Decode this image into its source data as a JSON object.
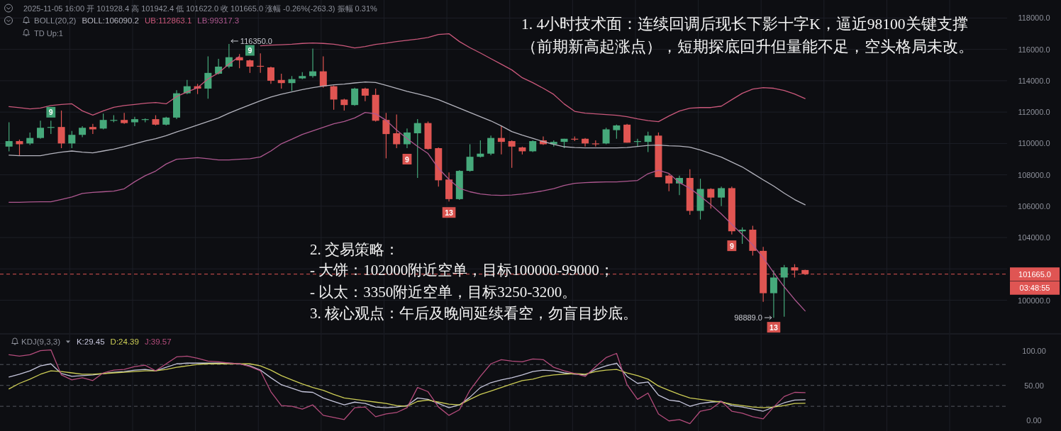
{
  "chart_data": [
    {
      "type": "candlestick",
      "categories": [
        null,
        null,
        null,
        null,
        null,
        null,
        null,
        null,
        null,
        null,
        null,
        null,
        null,
        null,
        null,
        null,
        null,
        null,
        null,
        null,
        null,
        null,
        null,
        null,
        null,
        null,
        null,
        null,
        null,
        null,
        null,
        null,
        null,
        null,
        null,
        null,
        null,
        null,
        null,
        null,
        null,
        null,
        null,
        null,
        null,
        null,
        null,
        null,
        null,
        null,
        null,
        null,
        null,
        null,
        null,
        null,
        null,
        null,
        null,
        null,
        null,
        null,
        null,
        null,
        null,
        null,
        null,
        null,
        null,
        null,
        null,
        null,
        null,
        null,
        null,
        null,
        null
      ],
      "ohlc": [
        [
          109800,
          111350,
          109500,
          110150
        ],
        [
          110150,
          110250,
          109250,
          109950
        ],
        [
          110000,
          110700,
          109900,
          110350
        ],
        [
          110350,
          111450,
          110300,
          111000
        ],
        [
          111000,
          111450,
          110600,
          111050
        ],
        [
          111050,
          112100,
          109700,
          110000
        ],
        [
          110000,
          110800,
          109700,
          110550
        ],
        [
          110550,
          111100,
          110400,
          111000
        ],
        [
          111050,
          111250,
          110600,
          110900
        ],
        [
          110950,
          111900,
          110900,
          111500
        ],
        [
          111450,
          111800,
          111350,
          111500
        ],
        [
          111500,
          111950,
          111250,
          111300
        ],
        [
          111350,
          111700,
          111100,
          111550
        ],
        [
          111500,
          111600,
          111350,
          111550
        ],
        [
          111550,
          111800,
          111150,
          111200
        ],
        [
          111200,
          111700,
          111150,
          111650
        ],
        [
          111650,
          113400,
          111550,
          113200
        ],
        [
          113200,
          114050,
          113150,
          113650
        ],
        [
          113650,
          113800,
          113150,
          113500
        ],
        [
          113500,
          115550,
          112850,
          114500
        ],
        [
          114450,
          115400,
          114400,
          114900
        ],
        [
          114900,
          116350,
          114800,
          115500
        ],
        [
          115500,
          115700,
          114800,
          115300
        ],
        [
          115300,
          115350,
          114500,
          114900
        ],
        [
          114950,
          115750,
          114500,
          114900
        ],
        [
          114850,
          114900,
          113800,
          114000
        ],
        [
          114050,
          114450,
          113500,
          113850
        ],
        [
          113850,
          114300,
          113350,
          114100
        ],
        [
          114150,
          114550,
          114100,
          114300
        ],
        [
          114300,
          116050,
          114200,
          114600
        ],
        [
          114600,
          115550,
          113550,
          113650
        ],
        [
          113650,
          113700,
          112150,
          112800
        ],
        [
          112800,
          112850,
          112100,
          112450
        ],
        [
          112450,
          113550,
          112400,
          113500
        ],
        [
          113500,
          113550,
          112700,
          113050
        ],
        [
          113100,
          113500,
          111400,
          111450
        ],
        [
          111500,
          111950,
          109050,
          110600
        ],
        [
          110650,
          111850,
          109700,
          109950
        ],
        [
          109950,
          110950,
          109700,
          110700
        ],
        [
          110650,
          111550,
          107800,
          111300
        ],
        [
          111300,
          111400,
          109600,
          109650
        ],
        [
          109700,
          109750,
          107250,
          107650
        ],
        [
          107700,
          108150,
          106300,
          106450
        ],
        [
          106450,
          108300,
          106400,
          108250
        ],
        [
          108250,
          109950,
          108200,
          109150
        ],
        [
          109150,
          110200,
          109100,
          109350
        ],
        [
          109350,
          110500,
          109250,
          110350
        ],
        [
          110350,
          111100,
          109300,
          110100
        ],
        [
          110150,
          110200,
          108450,
          109800
        ],
        [
          109750,
          109800,
          109300,
          109500
        ],
        [
          109500,
          110200,
          109450,
          110150
        ],
        [
          110200,
          110450,
          109900,
          109950
        ],
        [
          109950,
          110200,
          109800,
          110100
        ],
        [
          110100,
          110300,
          109700,
          110300
        ],
        [
          110300,
          110450,
          110150,
          110250
        ],
        [
          110300,
          110350,
          109800,
          110000
        ],
        [
          110000,
          110200,
          109800,
          109950
        ],
        [
          110000,
          111000,
          109950,
          110900
        ],
        [
          110850,
          111200,
          110300,
          111150
        ],
        [
          111200,
          111250,
          110050,
          110050
        ],
        [
          110100,
          110300,
          109800,
          110150
        ],
        [
          110100,
          110750,
          109450,
          110500
        ],
        [
          110500,
          110700,
          107850,
          107850
        ],
        [
          107950,
          108050,
          106950,
          107450
        ],
        [
          107450,
          107950,
          106700,
          107800
        ],
        [
          107800,
          108350,
          105450,
          105700
        ],
        [
          105700,
          107750,
          105150,
          107100
        ],
        [
          107100,
          107150,
          105850,
          106550
        ],
        [
          106550,
          107250,
          106000,
          107150
        ],
        [
          107150,
          107250,
          104200,
          104400
        ],
        [
          104400,
          104650,
          103600,
          104500
        ],
        [
          104500,
          104750,
          102850,
          103150
        ],
        [
          103150,
          103400,
          99900,
          100450
        ],
        [
          100450,
          101900,
          98889,
          101450
        ],
        [
          101450,
          102250,
          98950,
          102100
        ],
        [
          102100,
          102300,
          101450,
          101900
        ],
        [
          101928.4,
          101942.4,
          101622.0,
          101665.0
        ]
      ],
      "colors": [
        "#46a97b",
        "#e05552",
        "#46a97b",
        "#46a97b",
        "#46a97b",
        "#e05552",
        "#46a97b",
        "#46a97b",
        "#e05552",
        "#46a97b",
        "#46a97b",
        "#e05552",
        "#46a97b",
        "#46a97b",
        "#e05552",
        "#46a97b",
        "#46a97b",
        "#46a97b",
        "#e05552",
        "#46a97b",
        "#46a97b",
        "#46a97b",
        "#e05552",
        "#e05552",
        "#e05552",
        "#e05552",
        "#e05552",
        "#46a97b",
        "#46a97b",
        "#46a97b",
        "#e05552",
        "#e05552",
        "#e05552",
        "#46a97b",
        "#e05552",
        "#e05552",
        "#e05552",
        "#e05552",
        "#46a97b",
        "#46a97b",
        "#e05552",
        "#e05552",
        "#e05552",
        "#46a97b",
        "#46a97b",
        "#46a97b",
        "#46a97b",
        "#e05552",
        "#e05552",
        "#e05552",
        "#46a97b",
        "#e05552",
        "#46a97b",
        "#46a97b",
        "#e05552",
        "#e05552",
        "#e05552",
        "#46a97b",
        "#46a97b",
        "#e05552",
        "#46a97b",
        "#46a97b",
        "#e05552",
        "#e05552",
        "#46a97b",
        "#e05552",
        "#46a97b",
        "#e05552",
        "#46a97b",
        "#e05552",
        "#46a97b",
        "#e05552",
        "#e05552",
        "#46a97b",
        "#46a97b",
        "#e05552",
        "#e05552"
      ],
      "series": [
        {
          "type": "line",
          "name": "BOLL:106090.2",
          "color": "#b4b4be",
          "values": [
            109250,
            109220,
            109220,
            109220,
            109340,
            109450,
            109520,
            109450,
            109400,
            109520,
            109640,
            109800,
            109980,
            110160,
            110310,
            110500,
            110730,
            110950,
            111180,
            111400,
            111630,
            111930,
            112200,
            112460,
            112720,
            112960,
            113140,
            113290,
            113440,
            113560,
            113660,
            113740,
            113790,
            113860,
            113920,
            113890,
            113710,
            113510,
            113320,
            113170,
            112990,
            112790,
            112520,
            112250,
            111980,
            111710,
            111440,
            111120,
            110760,
            110530,
            110330,
            110120,
            109940,
            109790,
            109740,
            109720,
            109720,
            109720,
            109720,
            109740,
            109810,
            109880,
            109900,
            109850,
            109830,
            109760,
            109580,
            109360,
            109130,
            108810,
            108500,
            108090,
            107680,
            107280,
            106830,
            106420,
            106090.2
          ]
        },
        {
          "type": "line",
          "name": "UB:112863.1",
          "color": "#ca587b",
          "values": [
            112350,
            112280,
            112200,
            112260,
            112420,
            112490,
            112530,
            112080,
            111810,
            112080,
            112310,
            112420,
            112490,
            112570,
            112610,
            112530,
            112990,
            113290,
            113550,
            114120,
            114500,
            115070,
            115550,
            null,
            116230,
            116270,
            116300,
            116330,
            116380,
            116410,
            116380,
            116330,
            116230,
            116090,
            116180,
            116320,
            116400,
            116500,
            116580,
            116660,
            116760,
            116950,
            117000,
            116500,
            116110,
            115770,
            115410,
            115050,
            114690,
            114190,
            113880,
            113520,
            113130,
            112520,
            112050,
            111930,
            111890,
            111840,
            111800,
            111710,
            111570,
            111460,
            111390,
            111750,
            112070,
            112250,
            112290,
            112290,
            112380,
            112790,
            113200,
            113470,
            113560,
            113520,
            113380,
            113150,
            112863.1
          ]
        },
        {
          "type": "line",
          "name": "LB:99317.3",
          "color": "#ae5890",
          "values": [
            106250,
            106250,
            106270,
            106280,
            106280,
            106430,
            106590,
            106810,
            106880,
            106920,
            106960,
            107110,
            107560,
            107940,
            108240,
            108690,
            108990,
            109040,
            109100,
            109030,
            108950,
            108950,
            108990,
            109030,
            109140,
            109520,
            109980,
            110270,
            110580,
            110800,
            111030,
            111250,
            111400,
            111630,
            111980,
            111890,
            111480,
            110850,
            110310,
            109810,
            109360,
            108410,
            107710,
            107140,
            106920,
            106780,
            106710,
            106690,
            106710,
            106780,
            106870,
            106980,
            107120,
            107320,
            107460,
            107500,
            107530,
            107550,
            107550,
            107590,
            107640,
            108070,
            108290,
            108090,
            107500,
            107140,
            106640,
            106100,
            105510,
            104840,
            104200,
            103530,
            102710,
            101760,
            100860,
            100050,
            99317.3
          ]
        }
      ],
      "ylim": [
        97900,
        119150
      ],
      "yticks": [
        {
          "value": 100000,
          "label": "100000.0"
        },
        {
          "value": 102000,
          "label": null
        },
        {
          "value": 104000,
          "label": "104000.0"
        },
        {
          "value": 106000,
          "label": "106000.0"
        },
        {
          "value": 108000,
          "label": "108000.0"
        },
        {
          "value": 110000,
          "label": "110000.0"
        },
        {
          "value": 112000,
          "label": "112000.0"
        },
        {
          "value": 114000,
          "label": "114000.0"
        },
        {
          "value": 116000,
          "label": "116000.0"
        },
        {
          "value": 118000,
          "label": "118000.0"
        }
      ],
      "grid": true,
      "legend": "top left",
      "legend_title": "BOLL(20,2)",
      "ref_lines": [
        {
          "axis": "y",
          "value": 101665,
          "color": "#df5553",
          "line_style": "dashed"
        }
      ],
      "annotations": [
        "2025-11-05 16:00 开 101928.4 高 101942.4 低 101622.0 收 101665.0 涨幅 -0.26%(-263.3) 振幅 0.31%",
        "TD Up:1",
        "1. 4小时技术面：连续回调后现长下影十字K，逼近98100关键支撑",
        "（前期新高起涨点），短期探底回升但量能不足，空头格局未改。",
        "2. 交易策略：",
        "- 大饼：102000附近空单，目标100000-99000；",
        "- 以太：3350附近空单，目标3250-3200。",
        "3. 核心观点：午后及晚间延续看空，勿盲目抄底。",
        "116350.0",
        "98889.0",
        "101665.0",
        "03:48:55",
        "9",
        "9",
        "9",
        "13",
        "9",
        "13"
      ]
    },
    {
      "type": "line",
      "categories": [
        null,
        null,
        null,
        null,
        null,
        null,
        null,
        null,
        null,
        null,
        null,
        null,
        null,
        null,
        null,
        null,
        null,
        null,
        null,
        null,
        null,
        null,
        null,
        null,
        null,
        null,
        null,
        null,
        null,
        null,
        null,
        null,
        null,
        null,
        null,
        null,
        null,
        null,
        null,
        null,
        null,
        null,
        null,
        null,
        null,
        null,
        null,
        null,
        null,
        null,
        null,
        null,
        null,
        null,
        null,
        null,
        null,
        null,
        null,
        null,
        null,
        null,
        null,
        null,
        null,
        null,
        null,
        null,
        null,
        null,
        null,
        null,
        null,
        null,
        null,
        null,
        null
      ],
      "series": [
        {
          "name": "K:29.45",
          "color": "#c6c6dc",
          "values": [
            62,
            66,
            71,
            78,
            81,
            67,
            63,
            64,
            65,
            67,
            69,
            70,
            72,
            73,
            71,
            76,
            81,
            82,
            82,
            82,
            82,
            82,
            81,
            78,
            72,
            61,
            51,
            46,
            41,
            40,
            32,
            27,
            22,
            26,
            24,
            19,
            18,
            19,
            21,
            32,
            30,
            24,
            18,
            22,
            33,
            47,
            54,
            58,
            61,
            65,
            70,
            72,
            71,
            68,
            66,
            65,
            73,
            78,
            82,
            63,
            53,
            55,
            36,
            29,
            27,
            20,
            24,
            26,
            27,
            21,
            19,
            16,
            13,
            19,
            25,
            29,
            29.45
          ]
        },
        {
          "name": "D:24.39",
          "color": "#cdcd55",
          "values": [
            45,
            53,
            59,
            66,
            71,
            70,
            68,
            66,
            66,
            67,
            68,
            69,
            70,
            71,
            71,
            73,
            76,
            78,
            80,
            81,
            81,
            81,
            81,
            81,
            78,
            72,
            64,
            58,
            52,
            47,
            43,
            37,
            32,
            30,
            28,
            26,
            24,
            21,
            20,
            27,
            29,
            26,
            23,
            22,
            30,
            37,
            42,
            47,
            52,
            57,
            59,
            63,
            65,
            66,
            67,
            66,
            70,
            72,
            73,
            68,
            64,
            59,
            49,
            43,
            37,
            32,
            30,
            28,
            26,
            23,
            21,
            19,
            18,
            19,
            21,
            24,
            24.39
          ]
        },
        {
          "name": "J:39.57",
          "color": "#b44c7c",
          "values": [
            94,
            92,
            94,
            100,
            101,
            65,
            58,
            61,
            57,
            68,
            72,
            73,
            77,
            79,
            71,
            81,
            91,
            92,
            89,
            85,
            84,
            82,
            81,
            77,
            71,
            41,
            21,
            20,
            16,
            22,
            7,
            4,
            1,
            18,
            19,
            5,
            9,
            11,
            18,
            47,
            41,
            19,
            7,
            15,
            43,
            63,
            81,
            87,
            85,
            84,
            88,
            87,
            76,
            71,
            67,
            63,
            77,
            90,
            96,
            51,
            30,
            39,
            9,
            -1,
            1,
            -5,
            13,
            16,
            27,
            13,
            10,
            5,
            2,
            19,
            34,
            40,
            39.57
          ]
        }
      ],
      "ylim": [
        -15.5,
        123
      ],
      "yticks": [
        {
          "value": 0,
          "label": "0.00"
        },
        {
          "value": 50,
          "label": "50.00"
        },
        {
          "value": 100,
          "label": "100.00"
        }
      ],
      "grid": "x",
      "legend": "top left",
      "legend_title": "KDJ(9,3,3)",
      "ref_lines": [
        {
          "axis": "y",
          "value": 20,
          "color": "#53565e",
          "line_style": "dashed"
        },
        {
          "axis": "y",
          "value": 50,
          "color": "#53565e",
          "line_style": "dashed"
        },
        {
          "axis": "y",
          "value": 80,
          "color": "#53565e",
          "line_style": "dashed"
        }
      ]
    }
  ]
}
